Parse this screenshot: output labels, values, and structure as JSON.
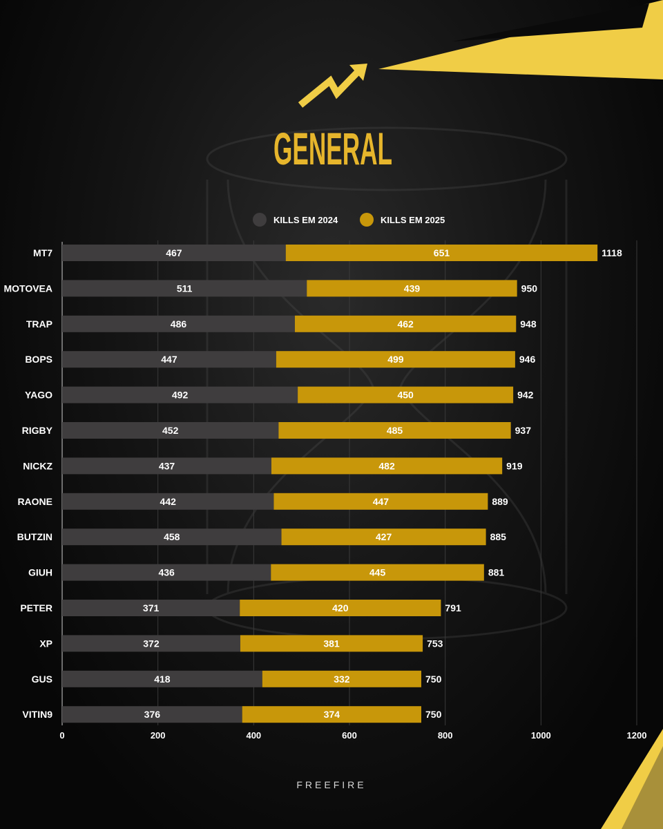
{
  "header": {
    "title": "GENERAL"
  },
  "footer": {
    "brand": "FREEFIRE"
  },
  "colors": {
    "accent": "#f0cd46",
    "series_2024": "#3f3d3e",
    "series_2025": "#c8970a",
    "title": "#e6b52c"
  },
  "icons": {
    "trend": "trend-arrow-icon"
  },
  "chart_data": {
    "type": "bar",
    "orientation": "horizontal",
    "stacked": true,
    "title": "GENERAL",
    "xlabel": "",
    "ylabel": "",
    "xlim": [
      0,
      1200
    ],
    "xticks": [
      0,
      200,
      400,
      600,
      800,
      1000,
      1200
    ],
    "grid": true,
    "legend_position": "top-center",
    "categories": [
      "MT7",
      "MOTOVEA",
      "TRAP",
      "BOPS",
      "YAGO",
      "RIGBY",
      "NICKZ",
      "RAONE",
      "BUTZIN",
      "GIUH",
      "PETER",
      "XP",
      "GUS",
      "VITIN9"
    ],
    "series": [
      {
        "name": "KILLS EM 2024",
        "values": [
          467,
          511,
          486,
          447,
          492,
          452,
          437,
          442,
          458,
          436,
          371,
          372,
          418,
          376
        ]
      },
      {
        "name": "KILLS EM 2025",
        "values": [
          651,
          439,
          462,
          499,
          450,
          485,
          482,
          447,
          427,
          445,
          420,
          381,
          332,
          374
        ]
      }
    ],
    "totals": [
      1118,
      950,
      948,
      946,
      942,
      937,
      919,
      889,
      885,
      881,
      791,
      753,
      750,
      750
    ]
  }
}
